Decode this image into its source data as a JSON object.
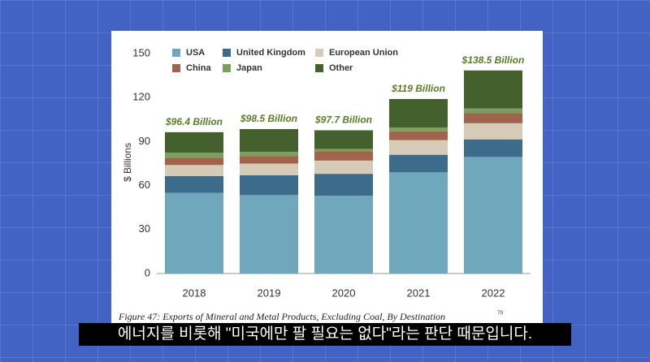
{
  "chart_data": {
    "type": "stacked_bar",
    "categories": [
      "2018",
      "2019",
      "2020",
      "2021",
      "2022"
    ],
    "series": [
      {
        "name": "USA",
        "color": "#6fa8bd",
        "values": [
          55,
          53.5,
          53,
          69,
          79.5
        ]
      },
      {
        "name": "United Kingdom",
        "color": "#3d6b8c",
        "values": [
          11.5,
          13.5,
          15,
          12,
          12
        ]
      },
      {
        "name": "European Union",
        "color": "#d5cbb7",
        "values": [
          7.5,
          8,
          9,
          10,
          11
        ]
      },
      {
        "name": "China",
        "color": "#a0634c",
        "values": [
          5,
          5,
          6.5,
          6,
          7
        ]
      },
      {
        "name": "Japan",
        "color": "#7ba05b",
        "values": [
          3.4,
          3,
          1.5,
          2.5,
          3
        ]
      },
      {
        "name": "Other",
        "color": "#44602c",
        "values": [
          14,
          15.5,
          12.7,
          19.5,
          26
        ]
      }
    ],
    "annotations": [
      "$96.4 Billion",
      "$98.5 Billion",
      "$97.7 Billion",
      "$119 Billion",
      "$138.5 Billion"
    ],
    "y_label": "$ Billions",
    "ylim": [
      0,
      150
    ],
    "yticks": [
      0,
      30,
      60,
      90,
      120,
      150
    ],
    "caption": "Figure 47: Exports of Mineral and Metal Products, Excluding Coal, By Destination",
    "footnote": "70"
  },
  "subtitle": "에너지를 비롯해 \"미국에만 팔 필요는 없다\"라는 판단 때문입니다."
}
